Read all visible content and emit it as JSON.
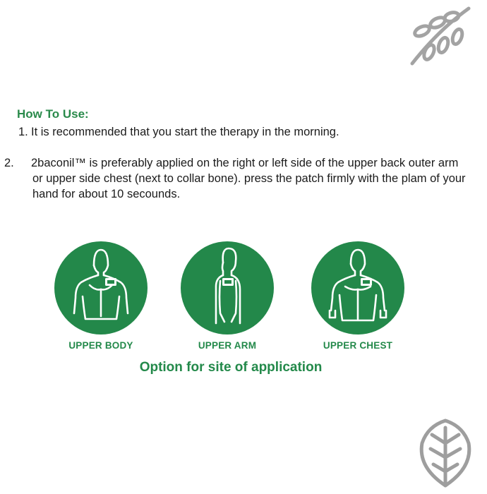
{
  "how_to_use": {
    "title": "How To Use:",
    "steps": [
      {
        "number": "1.",
        "text": "It is recommended that you start the therapy in the morning."
      },
      {
        "number": "2.",
        "text": "2baconil™ is preferably applied on the right or left side of the upper back outer arm or upper side chest (next to collar bone). press the patch firmly with the plam of your hand for about 10 secounds."
      }
    ]
  },
  "sites": [
    {
      "label": "UPPER BODY",
      "icon": "upper-back-figure-icon"
    },
    {
      "label": "UPPER ARM",
      "icon": "upper-arm-side-figure-icon"
    },
    {
      "label": "UPPER CHEST",
      "icon": "upper-chest-figure-icon"
    }
  ],
  "caption": "Option for site of application",
  "colors": {
    "brand_green": "#2a8a4b",
    "circle_green": "#23884a",
    "leaf_gray": "#9e9e9e",
    "text": "#1b1b1b"
  }
}
